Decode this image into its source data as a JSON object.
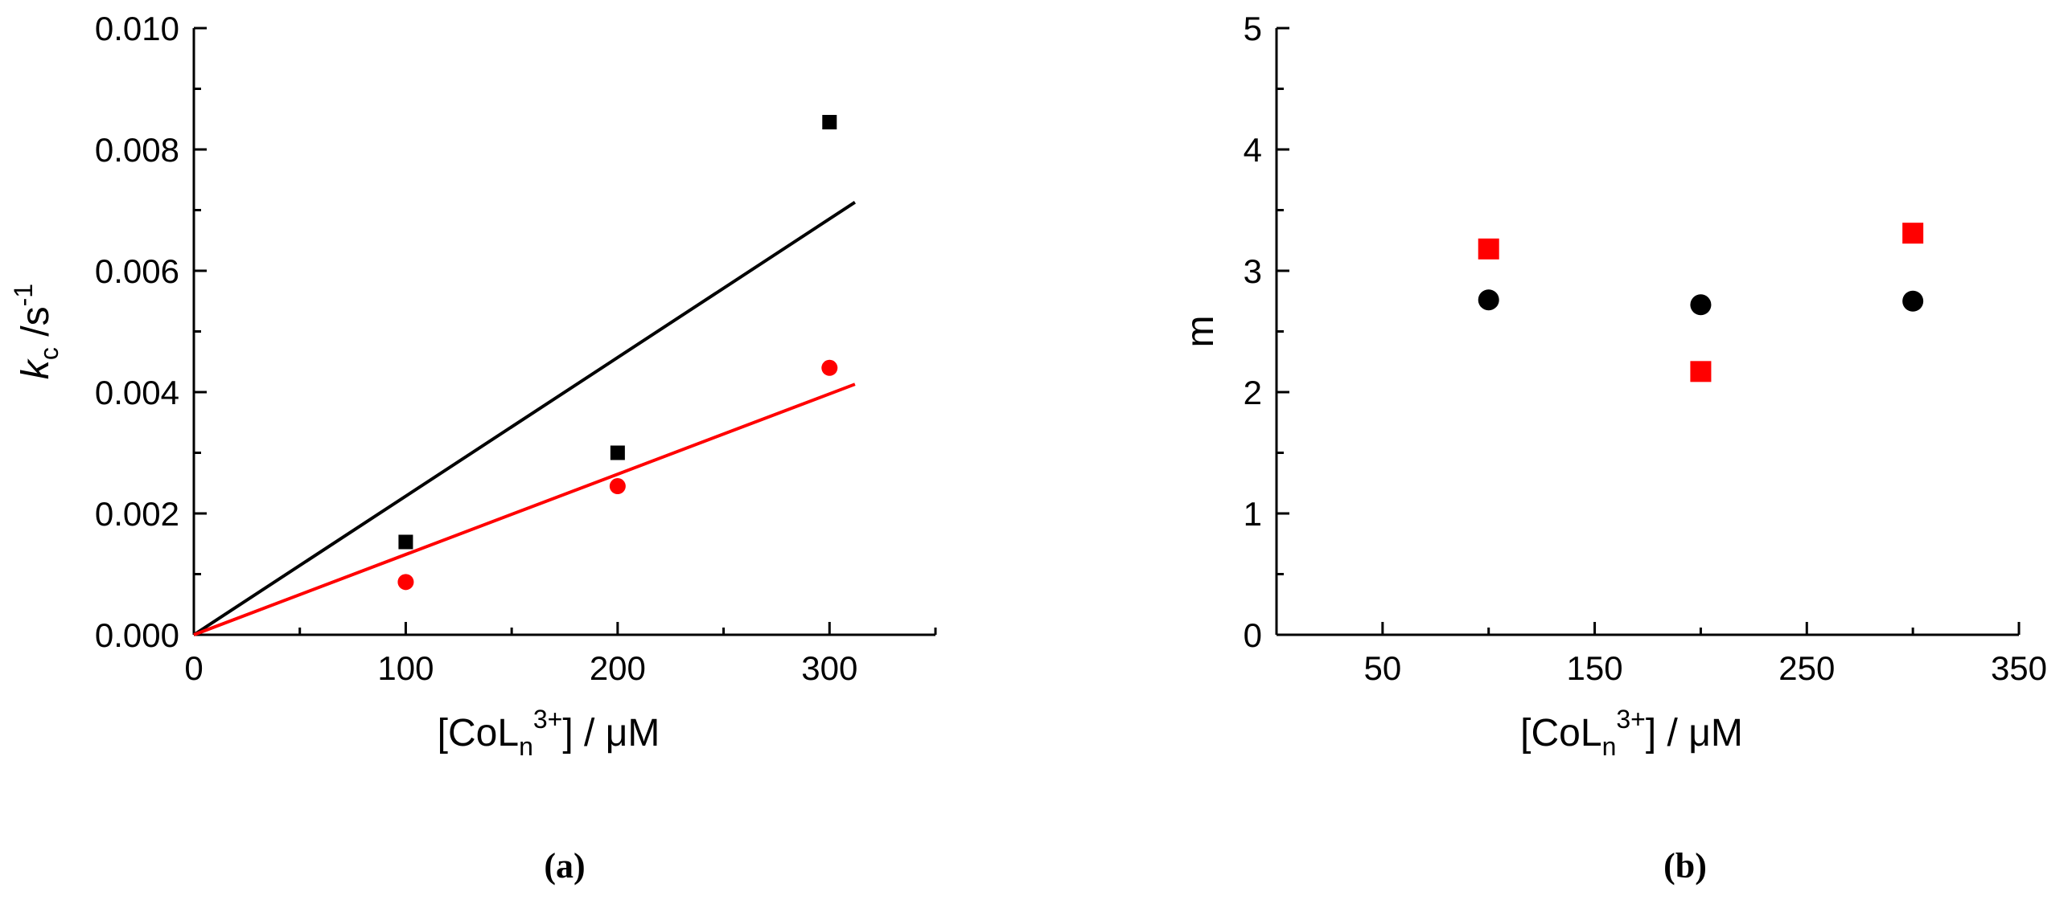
{
  "chart_data": [
    {
      "type": "scatter",
      "panel_label": "(a)",
      "xlabel": {
        "main": "[CoL",
        "sub": "n",
        "sup": "3+",
        "rest": "] / μM"
      },
      "ylabel": {
        "main": "k",
        "sub": "c",
        "mid": " /s",
        "sup": "-1"
      },
      "xlim": [
        0,
        350
      ],
      "ylim": [
        0,
        0.01
      ],
      "xticks": [
        0,
        100,
        200,
        300
      ],
      "xtick_labels": [
        "0",
        "100",
        "200",
        "300"
      ],
      "xminor": [
        50,
        150,
        250,
        350
      ],
      "yticks": [
        0,
        0.002,
        0.004,
        0.006,
        0.008,
        0.01
      ],
      "ytick_labels": [
        "0.000",
        "0.002",
        "0.004",
        "0.006",
        "0.008",
        "0.010"
      ],
      "yminor": [
        0.001,
        0.003,
        0.005,
        0.007,
        0.009
      ],
      "series": [
        {
          "name": "black points",
          "marker": "square",
          "color": "#000000",
          "x": [
            100,
            200,
            300
          ],
          "y": [
            0.00153,
            0.003,
            0.00845
          ]
        },
        {
          "name": "red points",
          "marker": "circle",
          "color": "#ff0000",
          "x": [
            100,
            200,
            300
          ],
          "y": [
            0.00087,
            0.00245,
            0.0044
          ]
        }
      ],
      "fit_lines": [
        {
          "name": "black fit",
          "color": "#000000",
          "x": [
            0,
            312
          ],
          "y": [
            0,
            0.00713
          ]
        },
        {
          "name": "red fit",
          "color": "#ff0000",
          "x": [
            0,
            312
          ],
          "y": [
            0,
            0.00413
          ]
        }
      ]
    },
    {
      "type": "scatter",
      "panel_label": "(b)",
      "xlabel": {
        "main": "[CoL",
        "sub": "n",
        "sup": "3+",
        "rest": "] / μM"
      },
      "ylabel": {
        "main": "m"
      },
      "xlim": [
        0,
        350
      ],
      "ylim": [
        0,
        5
      ],
      "xticks": [
        50,
        150,
        250,
        350
      ],
      "xtick_labels": [
        "50",
        "150",
        "250",
        "350"
      ],
      "xminor": [
        100,
        200,
        300
      ],
      "yticks": [
        0,
        1,
        2,
        3,
        4,
        5
      ],
      "ytick_labels": [
        "0",
        "1",
        "2",
        "3",
        "4",
        "5"
      ],
      "yminor": [
        0.5,
        1.5,
        2.5,
        3.5,
        4.5
      ],
      "series": [
        {
          "name": "black points",
          "marker": "circle",
          "color": "#000000",
          "x": [
            100,
            200,
            300
          ],
          "y": [
            2.76,
            2.72,
            2.75
          ]
        },
        {
          "name": "red points",
          "marker": "square",
          "color": "#ff0000",
          "x": [
            100,
            200,
            300
          ],
          "y": [
            3.18,
            2.17,
            3.31
          ]
        }
      ],
      "fit_lines": []
    }
  ]
}
